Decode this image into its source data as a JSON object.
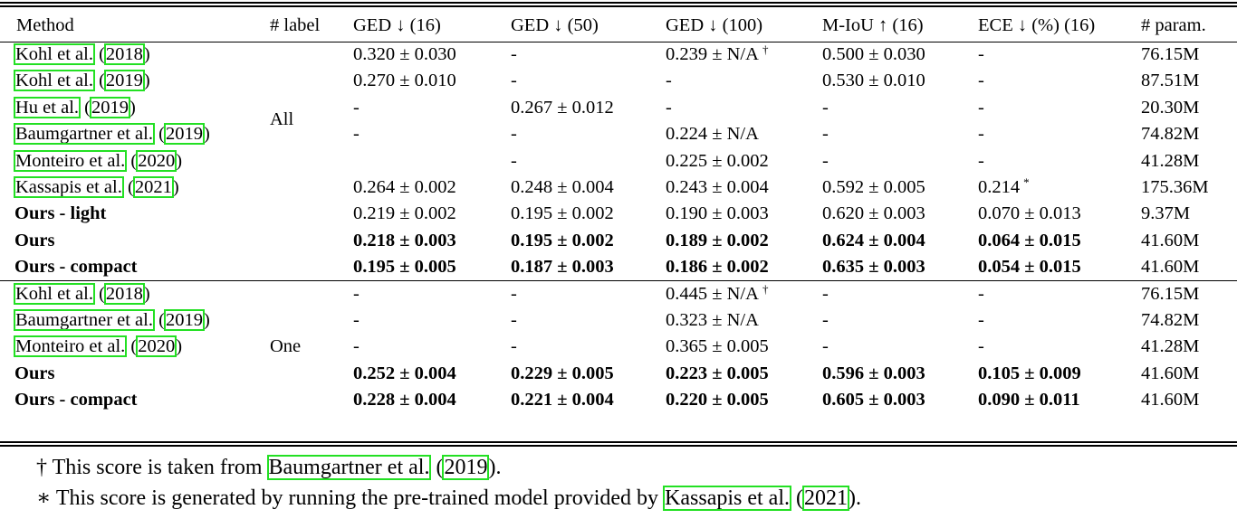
{
  "table": {
    "headers": [
      "Method",
      "# label",
      "GED ↓ (16)",
      "GED ↓ (50)",
      "GED ↓ (100)",
      "M-IoU ↑ (16)",
      "ECE ↓ (%) (16)",
      "# param."
    ],
    "groups": [
      {
        "label": "All",
        "rows": [
          {
            "author": "Kohl et al.",
            "year": "2018",
            "bold": false,
            "cells": [
              "0.320 ± 0.030",
              "-",
              "0.239 ± N/A",
              "0.500 ± 0.030",
              "-",
              "76.15M"
            ],
            "marks": [
              "",
              "",
              "†",
              "",
              "",
              ""
            ]
          },
          {
            "author": "Kohl et al.",
            "year": "2019",
            "bold": false,
            "cells": [
              "0.270 ± 0.010",
              "-",
              "-",
              "0.530 ± 0.010",
              "-",
              "87.51M"
            ],
            "marks": [
              "",
              "",
              "",
              "",
              "",
              ""
            ]
          },
          {
            "author": "Hu et al.",
            "year": "2019",
            "bold": false,
            "cells": [
              "-",
              "0.267 ± 0.012",
              "-",
              "-",
              "-",
              "20.30M"
            ],
            "marks": [
              "",
              "",
              "",
              "",
              "",
              ""
            ]
          },
          {
            "author": "Baumgartner et al.",
            "year": "2019",
            "bold": false,
            "cells": [
              "-",
              "-",
              "0.224 ± N/A",
              "-",
              "-",
              "74.82M"
            ],
            "marks": [
              "",
              "",
              "",
              "",
              "",
              ""
            ]
          },
          {
            "author": "Monteiro et al.",
            "year": "2020",
            "bold": false,
            "cells": [
              "",
              "-",
              "0.225 ± 0.002",
              "-",
              "-",
              "41.28M"
            ],
            "marks": [
              "",
              "",
              "",
              "",
              "",
              ""
            ]
          },
          {
            "author": "Kassapis et al.",
            "year": "2021",
            "bold": false,
            "cells": [
              "0.264 ± 0.002",
              "0.248 ± 0.004",
              "0.243 ± 0.004",
              "0.592 ± 0.005",
              "0.214",
              "175.36M"
            ],
            "marks": [
              "",
              "",
              "",
              "",
              "*",
              ""
            ]
          },
          {
            "name": "Ours - light",
            "bold": true,
            "cellsBold": false,
            "cells": [
              "0.219 ± 0.002",
              "0.195 ± 0.002",
              "0.190 ± 0.003",
              "0.620 ± 0.003",
              "0.070 ± 0.013",
              "9.37M"
            ]
          },
          {
            "name": "Ours",
            "bold": true,
            "cellsBold": true,
            "cells": [
              "0.218 ± 0.003",
              "0.195 ± 0.002",
              "0.189 ± 0.002",
              "0.624 ± 0.004",
              "0.064 ± 0.015",
              "41.60M"
            ]
          },
          {
            "name": "Ours - compact",
            "bold": true,
            "cellsBold": true,
            "cells": [
              "0.195 ± 0.005",
              "0.187 ± 0.003",
              "0.186 ± 0.002",
              "0.635 ± 0.003",
              "0.054 ± 0.015",
              "41.60M"
            ]
          }
        ]
      },
      {
        "label": "One",
        "rows": [
          {
            "author": "Kohl et al.",
            "year": "2018",
            "bold": false,
            "cells": [
              "-",
              "-",
              "0.445 ± N/A",
              "-",
              "-",
              "76.15M"
            ],
            "marks": [
              "",
              "",
              "†",
              "",
              "",
              ""
            ]
          },
          {
            "author": "Baumgartner et al.",
            "year": "2019",
            "bold": false,
            "cells": [
              "-",
              "-",
              "0.323 ± N/A",
              "-",
              "-",
              "74.82M"
            ],
            "marks": [
              "",
              "",
              "",
              "",
              "",
              ""
            ]
          },
          {
            "author": "Monteiro et al.",
            "year": "2020",
            "bold": false,
            "cells": [
              "-",
              "-",
              "0.365 ± 0.005",
              "-",
              "-",
              "41.28M"
            ],
            "marks": [
              "",
              "",
              "",
              "",
              "",
              ""
            ]
          },
          {
            "name": "Ours",
            "bold": true,
            "cellsBold": true,
            "cells": [
              "0.252 ± 0.004",
              "0.229 ± 0.005",
              "0.223 ± 0.005",
              "0.596 ± 0.003",
              "0.105 ± 0.009",
              "41.60M"
            ]
          },
          {
            "name": "Ours - compact",
            "bold": true,
            "cellsBold": true,
            "cells": [
              "0.228 ± 0.004",
              "0.221 ± 0.004",
              "0.220 ± 0.005",
              "0.605 ± 0.003",
              "0.090 ± 0.011",
              "41.60M"
            ]
          }
        ]
      }
    ]
  },
  "footnotes": {
    "dagger": {
      "symbol": "†",
      "text": "This score is taken from",
      "author": "Baumgartner et al.",
      "year": "2019",
      "end": ")."
    },
    "star": {
      "symbol": "∗",
      "text": "This score is generated by running the pre-trained model provided by",
      "author": "Kassapis et al.",
      "year": "2021",
      "end": ")."
    }
  }
}
